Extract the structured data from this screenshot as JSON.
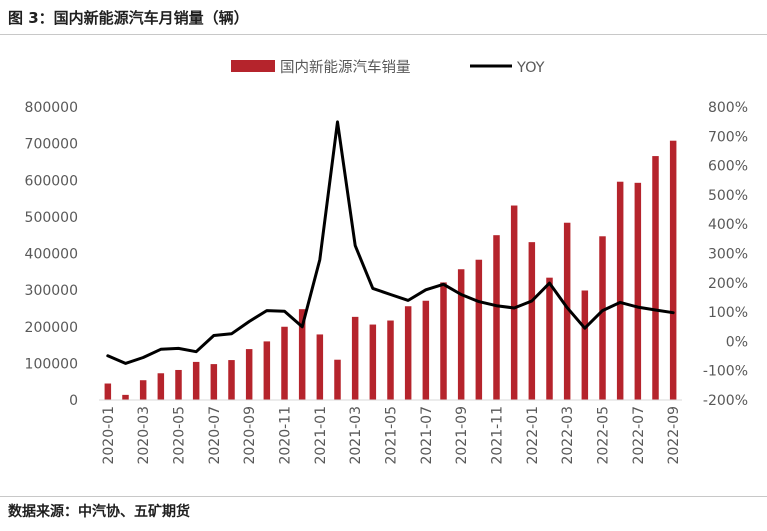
{
  "figure": {
    "title": "图 3：国内新能源汽车月销量（辆）",
    "source": "数据来源：中汽协、五矿期货"
  },
  "chart_data": {
    "type": "bar",
    "categories": [
      "2020-01",
      "2020-02",
      "2020-03",
      "2020-04",
      "2020-05",
      "2020-06",
      "2020-07",
      "2020-08",
      "2020-09",
      "2020-10",
      "2020-11",
      "2020-12",
      "2021-01",
      "2021-02",
      "2021-03",
      "2021-04",
      "2021-05",
      "2021-06",
      "2021-07",
      "2021-08",
      "2021-09",
      "2021-10",
      "2021-11",
      "2021-12",
      "2022-01",
      "2022-02",
      "2022-03",
      "2022-04",
      "2022-05",
      "2022-06",
      "2022-07",
      "2022-08",
      "2022-09"
    ],
    "tick_labels": [
      "2020-01",
      "2020-03",
      "2020-05",
      "2020-07",
      "2020-09",
      "2020-11",
      "2021-01",
      "2021-03",
      "2021-05",
      "2021-07",
      "2021-09",
      "2021-11",
      "2022-01",
      "2022-03",
      "2022-05",
      "2022-07",
      "2022-09"
    ],
    "series": [
      {
        "name": "国内新能源汽车销量",
        "type": "bar",
        "axis": "left",
        "color": "#b5242c",
        "values": [
          45000,
          14000,
          54000,
          73000,
          82000,
          104000,
          98000,
          109000,
          139000,
          160000,
          200000,
          248000,
          179000,
          110000,
          227000,
          206000,
          217000,
          256000,
          271000,
          321000,
          357000,
          383000,
          450000,
          531000,
          431000,
          334000,
          484000,
          299000,
          447000,
          596000,
          593000,
          666000,
          708000
        ]
      },
      {
        "name": "YOY",
        "type": "line",
        "axis": "right",
        "color": "#000000",
        "values": [
          -0.49,
          -0.75,
          -0.55,
          -0.27,
          -0.24,
          -0.35,
          0.2,
          0.26,
          0.68,
          1.05,
          1.03,
          0.5,
          2.79,
          7.49,
          3.27,
          1.81,
          1.6,
          1.4,
          1.76,
          1.95,
          1.6,
          1.36,
          1.22,
          1.14,
          1.38,
          1.99,
          1.15,
          0.45,
          1.05,
          1.33,
          1.17,
          1.07,
          0.98
        ]
      }
    ],
    "y_left": {
      "min": 0,
      "max": 800000,
      "step": 100000,
      "ticks": [
        "0",
        "100000",
        "200000",
        "300000",
        "400000",
        "500000",
        "600000",
        "700000",
        "800000"
      ]
    },
    "y_right": {
      "min": -2,
      "max": 8,
      "step": 1,
      "ticks": [
        "-200%",
        "-100%",
        "0%",
        "100%",
        "200%",
        "300%",
        "400%",
        "500%",
        "600%",
        "700%",
        "800%"
      ]
    },
    "legend_position": "top-center",
    "grid": false
  }
}
